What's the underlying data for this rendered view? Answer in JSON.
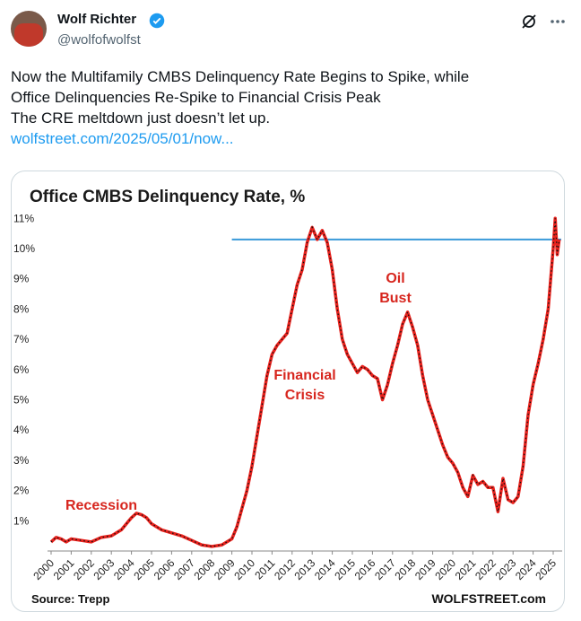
{
  "tweet": {
    "name": "Wolf Richter",
    "handle": "@wolfofwolfst",
    "text_lines": [
      "Now the Multifamily CMBS Delinquency Rate Begins to Spike, while",
      "Office Delinquencies Re-Spike to Financial Crisis Peak",
      "The CRE meltdown just doesn’t let up."
    ],
    "link": "wolfstreet.com/2025/05/01/now..."
  },
  "chart_data": {
    "type": "line",
    "title": "Office CMBS Delinquency Rate, %",
    "source": "Source: Trepp",
    "brand": "WOLFSTREET.com",
    "annotations": {
      "recession": [
        "Recession"
      ],
      "financial_crisis": [
        "Financial",
        "Crisis"
      ],
      "oil_bust": [
        "Oil",
        "Bust"
      ]
    },
    "xlim": [
      2000,
      2025.4
    ],
    "ylim": [
      0,
      11.2
    ],
    "xticks": [
      2000,
      2001,
      2002,
      2003,
      2004,
      2005,
      2006,
      2007,
      2008,
      2009,
      2010,
      2011,
      2012,
      2013,
      2014,
      2015,
      2016,
      2017,
      2018,
      2019,
      2020,
      2021,
      2022,
      2023,
      2024,
      2025
    ],
    "yticks": [
      {
        "value": 1,
        "label": "1%"
      },
      {
        "value": 2,
        "label": "2%"
      },
      {
        "value": 3,
        "label": "3%"
      },
      {
        "value": 4,
        "label": "4%"
      },
      {
        "value": 5,
        "label": "5%"
      },
      {
        "value": 6,
        "label": "6%"
      },
      {
        "value": 7,
        "label": "7%"
      },
      {
        "value": 8,
        "label": "8%"
      },
      {
        "value": 9,
        "label": "9%"
      },
      {
        "value": 10,
        "label": "10%"
      },
      {
        "value": 11,
        "label": "11%"
      }
    ],
    "reference_line": {
      "y": 10.3,
      "x": [
        2009,
        2025.4
      ],
      "color": "#3a9ad9"
    },
    "series": [
      {
        "color": "#e8211c",
        "x": [
          2000,
          2000.25,
          2000.5,
          2000.75,
          2001,
          2001.5,
          2002,
          2002.5,
          2003,
          2003.5,
          2003.75,
          2004,
          2004.25,
          2004.5,
          2004.75,
          2005,
          2005.5,
          2006,
          2006.5,
          2007,
          2007.5,
          2008,
          2008.5,
          2009,
          2009.25,
          2009.5,
          2009.75,
          2010,
          2010.25,
          2010.5,
          2010.75,
          2011,
          2011.25,
          2011.5,
          2011.75,
          2012,
          2012.25,
          2012.5,
          2012.75,
          2013,
          2013.25,
          2013.5,
          2013.75,
          2014,
          2014.25,
          2014.5,
          2014.75,
          2015,
          2015.25,
          2015.5,
          2015.75,
          2016,
          2016.25,
          2016.5,
          2016.75,
          2017,
          2017.25,
          2017.5,
          2017.75,
          2018,
          2018.25,
          2018.5,
          2018.75,
          2019,
          2019.25,
          2019.5,
          2019.75,
          2020,
          2020.25,
          2020.5,
          2020.75,
          2021,
          2021.25,
          2021.5,
          2021.75,
          2022,
          2022.25,
          2022.5,
          2022.75,
          2023,
          2023.25,
          2023.5,
          2023.75,
          2024,
          2024.25,
          2024.5,
          2024.75,
          2025,
          2025.1,
          2025.2,
          2025.3
        ],
        "values": [
          0.3,
          0.45,
          0.4,
          0.3,
          0.4,
          0.35,
          0.3,
          0.45,
          0.5,
          0.7,
          0.9,
          1.1,
          1.25,
          1.2,
          1.1,
          0.9,
          0.7,
          0.6,
          0.5,
          0.35,
          0.2,
          0.15,
          0.2,
          0.4,
          0.8,
          1.4,
          2.0,
          2.8,
          3.8,
          4.8,
          5.8,
          6.5,
          6.8,
          7.0,
          7.2,
          8.0,
          8.8,
          9.3,
          10.2,
          10.7,
          10.3,
          10.6,
          10.2,
          9.3,
          8.0,
          7.0,
          6.5,
          6.2,
          5.9,
          6.1,
          6.0,
          5.8,
          5.7,
          5.0,
          5.5,
          6.2,
          6.8,
          7.5,
          7.9,
          7.4,
          6.8,
          5.8,
          5.0,
          4.5,
          4.0,
          3.5,
          3.1,
          2.9,
          2.6,
          2.1,
          1.8,
          2.5,
          2.2,
          2.3,
          2.1,
          2.1,
          1.3,
          2.4,
          1.7,
          1.6,
          1.8,
          2.8,
          4.5,
          5.5,
          6.2,
          7.0,
          8.0,
          10.0,
          11.0,
          9.8,
          10.3
        ]
      }
    ]
  }
}
